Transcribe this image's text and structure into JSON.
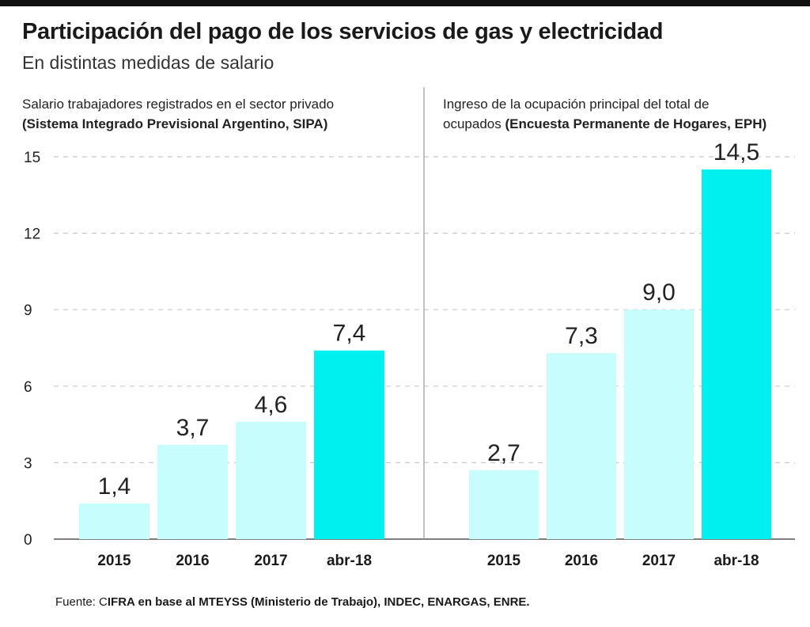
{
  "header": {
    "title": "Participación del pago de los servicios de gas y electricidad",
    "subtitle": "En distintas medidas de salario"
  },
  "colors": {
    "bar": "#c8fdfd",
    "bar_highlight": "#00f0f0",
    "grid": "#c8c8c8",
    "axis": "#555555",
    "divider": "#999999"
  },
  "chart_data": [
    {
      "type": "bar",
      "title": "Salario trabajadores registrados en el sector privado",
      "title_bold": "(Sistema Integrado Previsional Argentino, SIPA)",
      "categories": [
        "2015",
        "2016",
        "2017",
        "abr-18"
      ],
      "values": [
        1.4,
        3.7,
        4.6,
        7.4
      ],
      "value_labels": [
        "1,4",
        "3,7",
        "4,6",
        "7,4"
      ],
      "highlight": [
        false,
        false,
        false,
        true
      ],
      "ylim": [
        0,
        15
      ],
      "yticks": [
        0,
        3,
        6,
        9,
        12,
        15
      ],
      "ytick_labels": [
        "0",
        "3",
        "6",
        "9",
        "12",
        "15"
      ],
      "grid": true
    },
    {
      "type": "bar",
      "title_line1": "Ingreso de la ocupación principal del total de",
      "title_line2": "ocupados",
      "title_bold": "(Encuesta Permanente de Hogares, EPH)",
      "categories": [
        "2015",
        "2016",
        "2017",
        "abr-18"
      ],
      "values": [
        2.7,
        7.3,
        9.0,
        14.5
      ],
      "value_labels": [
        "2,7",
        "7,3",
        "9,0",
        "14,5"
      ],
      "highlight": [
        false,
        false,
        false,
        true
      ],
      "ylim": [
        0,
        15
      ],
      "grid": true
    }
  ],
  "footer": {
    "source_prefix": "Fuente: C",
    "source_text": "IFRA en base al MTEYSS (Ministerio de Trabajo), INDEC, ENARGAS, ENRE."
  }
}
